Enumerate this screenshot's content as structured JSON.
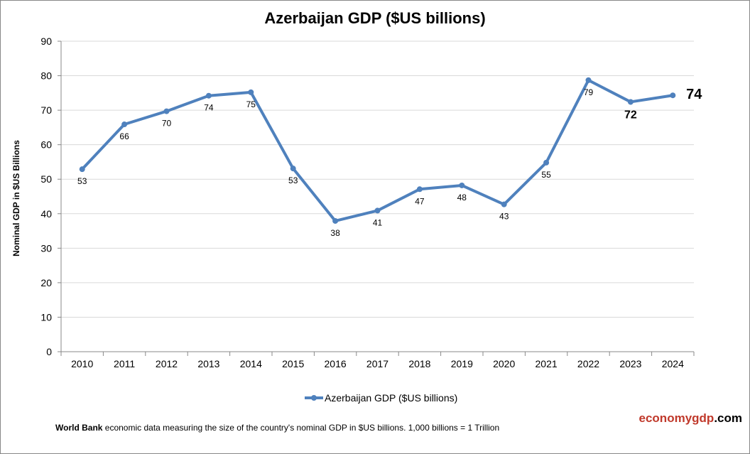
{
  "chart_data": {
    "type": "line",
    "title": "Azerbaijan GDP ($US billions)",
    "ylabel": "Nominal GDP in $US Billions",
    "xlabel": "",
    "ylim": [
      0,
      90
    ],
    "yticks": [
      0,
      10,
      20,
      30,
      40,
      50,
      60,
      70,
      80,
      90
    ],
    "grid": true,
    "legend": "bottom",
    "categories": [
      "2010",
      "2011",
      "2012",
      "2013",
      "2014",
      "2015",
      "2016",
      "2017",
      "2018",
      "2019",
      "2020",
      "2021",
      "2022",
      "2023",
      "2024"
    ],
    "series": [
      {
        "name": "Azerbaijan GDP ($US billions)",
        "color": "#4f81bd",
        "values": [
          52.9,
          65.9,
          69.7,
          74.2,
          75.2,
          53.1,
          37.9,
          40.9,
          47.1,
          48.2,
          42.7,
          54.8,
          78.7,
          72.4,
          74.3
        ],
        "labels": [
          "53",
          "66",
          "70",
          "74",
          "75",
          "53",
          "38",
          "41",
          "47",
          "48",
          "43",
          "55",
          "79",
          "72",
          "74"
        ]
      }
    ]
  },
  "footer": {
    "note_bold": "World Bank",
    "note": " economic data  measuring the size of the country's nominal GDP in $US billions. 1,000 billions = 1 Trillion",
    "brand_a": "economygdp",
    "brand_b": ".com"
  }
}
